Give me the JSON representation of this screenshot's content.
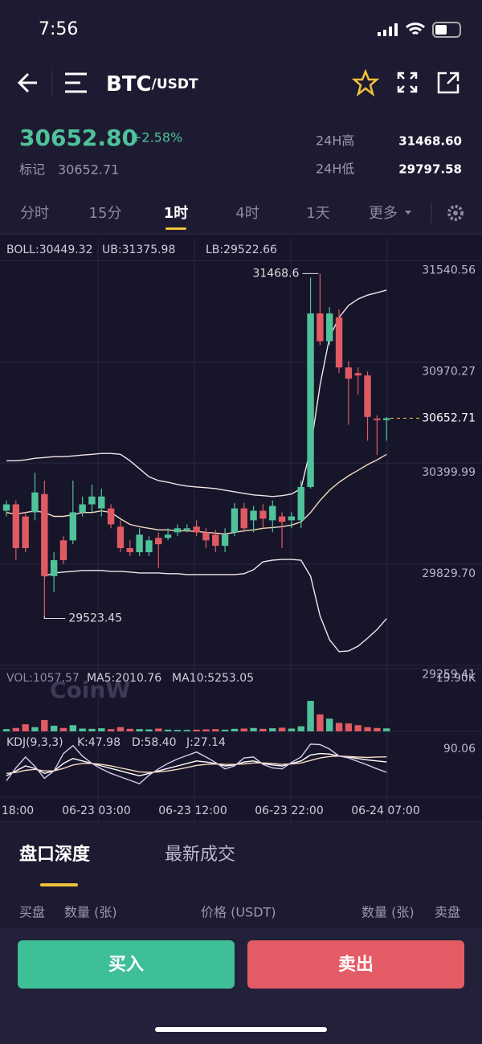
{
  "status_bar": {
    "time": "7:56"
  },
  "header": {
    "symbol": "BTC",
    "quote": "/USDT"
  },
  "ticker": {
    "price": "30652.80",
    "change": "+2.58%",
    "mark_label": "标记",
    "mark_price": "30652.71",
    "high_label": "24H高",
    "high": "31468.60",
    "low_label": "24H低",
    "low": "29797.58"
  },
  "tabs": [
    "分时",
    "15分",
    "1时",
    "4时",
    "1天",
    "更多"
  ],
  "active_tab": 2,
  "chart_data": {
    "type": "candlestick",
    "legend": [
      "BOLL:30449.32",
      "UB:31375.98",
      "LB:29522.66"
    ],
    "up_color": "#4fc29a",
    "down_color": "#e05a63",
    "open": [
      30131,
      30167,
      30099,
      30122,
      30225,
      29762,
      29964,
      29964,
      30122,
      30167,
      30144,
      30144,
      30041,
      29920,
      29897,
      29897,
      29978,
      29978,
      30009,
      30023,
      30041,
      30009,
      29996,
      29933,
      30009,
      30144,
      30077,
      30131,
      30077,
      30099,
      30077,
      30077,
      30265,
      31244,
      31087,
      31222,
      30939,
      30907,
      30894,
      30651,
      30642
    ],
    "high": [
      30189,
      30189,
      30122,
      30346,
      30301,
      29897,
      29987,
      30301,
      30211,
      30279,
      30256,
      30167,
      30077,
      29964,
      30032,
      29987,
      30009,
      30032,
      30054,
      30054,
      30077,
      30032,
      30023,
      30032,
      30175,
      30175,
      30158,
      30167,
      30189,
      30122,
      30122,
      30301,
      31446,
      31468.6,
      31280,
      31267,
      30975,
      30939,
      30916,
      30669,
      30660
    ],
    "low": [
      30099,
      29852,
      29897,
      30077,
      29523.45,
      29673,
      29830,
      29942,
      30099,
      30122,
      30099,
      30032,
      29897,
      29875,
      29875,
      29875,
      29807,
      29964,
      29987,
      30009,
      29987,
      29920,
      29897,
      29897,
      29987,
      30009,
      30009,
      30032,
      30009,
      29920,
      30032,
      30032,
      30256,
      31065,
      31065,
      30907,
      30616,
      30786,
      30526,
      30445,
      30526
    ],
    "close": [
      30167,
      29920,
      29920,
      30234,
      29762,
      29852,
      29852,
      30122,
      30167,
      30211,
      30211,
      30054,
      29920,
      29897,
      29996,
      29964,
      29942,
      29996,
      30032,
      30032,
      30009,
      29964,
      29933,
      29996,
      30144,
      30032,
      30131,
      30086,
      30158,
      30068,
      30099,
      30265,
      31244,
      31087,
      31244,
      30939,
      30876,
      30894,
      30660,
      30642,
      30652.71
    ],
    "bands": {
      "color_outer": "#f2e6ea",
      "color_middle": "#f3dcc0",
      "upper": [
        30413,
        30413,
        30418,
        30427,
        30431,
        30436,
        30436,
        30440,
        30445,
        30449,
        30454,
        30454,
        30449,
        30413,
        30368,
        30323,
        30301,
        30292,
        30279,
        30270,
        30265,
        30261,
        30256,
        30247,
        30238,
        30229,
        30220,
        30216,
        30211,
        30216,
        30225,
        30256,
        30481,
        30840,
        31109,
        31221,
        31289,
        31325,
        31347,
        31361,
        31375.98
      ],
      "middle": [
        30121,
        30112,
        30121,
        30130,
        30121,
        30099,
        30099,
        30108,
        30121,
        30121,
        30130,
        30121,
        30085,
        30054,
        30041,
        30032,
        30023,
        30023,
        30018,
        30018,
        30014,
        30009,
        30005,
        30000,
        30009,
        30018,
        30023,
        30032,
        30036,
        30041,
        30050,
        30068,
        30121,
        30189,
        30247,
        30292,
        30328,
        30359,
        30391,
        30418,
        30449.32
      ],
      "lower": [
        null,
        null,
        null,
        null,
        29762,
        29780,
        29785,
        29789,
        29794,
        29794,
        29794,
        29789,
        29789,
        29785,
        29780,
        29780,
        29780,
        29776,
        29776,
        29771,
        29771,
        29771,
        29771,
        29771,
        29771,
        29776,
        29798,
        29843,
        29852,
        29856,
        29856,
        29852,
        29762,
        29538,
        29403,
        29336,
        29340,
        29367,
        29412,
        29461,
        29522.66
      ]
    },
    "ylim": [
      29240,
      31670
    ],
    "yticks": [
      31540.56,
      30970.27,
      30399.99,
      {
        "value": 29829.7,
        "label": "29829.70"
      },
      29259.41
    ],
    "grid": true,
    "last_price": 30652.71,
    "high_note": 31468.6,
    "low_note": 29523.45,
    "x_labels": [
      "18:00",
      "06-23 03:00",
      "06-23 12:00",
      "06-23 22:00",
      "06-24 07:00"
    ]
  },
  "volume": {
    "legend": [
      "VOL:1057.57",
      "MA5:2010.76",
      "MA10:5253.05"
    ],
    "values": [
      800,
      1200,
      2500,
      1500,
      4000,
      2000,
      1200,
      2200,
      1000,
      900,
      1100,
      800,
      1500,
      900,
      800,
      700,
      1000,
      600,
      500,
      500,
      600,
      700,
      800,
      600,
      900,
      1000,
      1200,
      900,
      1100,
      1300,
      1000,
      1800,
      10800,
      6000,
      4500,
      3000,
      2800,
      2200,
      1500,
      1200,
      1057.57
    ],
    "ylim": [
      0,
      19900
    ],
    "yticks": [
      {
        "value": 19900,
        "label": "19.90K"
      }
    ]
  },
  "kdj": {
    "legend": [
      "KDJ(9,3,3)",
      "K:47.98",
      "D:58.40",
      "J:27.14"
    ],
    "k": [
      20,
      30,
      40,
      35,
      25,
      30,
      45,
      55,
      50,
      45,
      40,
      35,
      30,
      25,
      20,
      25,
      30,
      35,
      40,
      45,
      50,
      48,
      45,
      40,
      42,
      48,
      50,
      45,
      42,
      40,
      45,
      50,
      62,
      65,
      64,
      60,
      58,
      55,
      52,
      50,
      47.98
    ],
    "d": [
      25,
      27,
      31,
      33,
      30,
      30,
      35,
      42,
      45,
      45,
      43,
      40,
      36,
      32,
      28,
      27,
      28,
      30,
      33,
      37,
      41,
      43,
      44,
      43,
      43,
      44,
      46,
      46,
      45,
      43,
      44,
      46,
      51,
      56,
      59,
      60,
      59,
      58,
      57,
      58,
      58.4
    ],
    "j": [
      10,
      36,
      58,
      39,
      15,
      30,
      65,
      81,
      60,
      45,
      34,
      25,
      18,
      11,
      4,
      21,
      34,
      45,
      54,
      61,
      68,
      58,
      47,
      34,
      40,
      56,
      58,
      43,
      36,
      34,
      47,
      58,
      84,
      83,
      74,
      60,
      56,
      49,
      42,
      34,
      27.14
    ],
    "ylim": [
      -20,
      100
    ],
    "yticks": [
      90.06
    ]
  },
  "watermark": "CoinW",
  "order_tabs": [
    "盘口深度",
    "最新成交"
  ],
  "order_header": [
    "买盘",
    "数量 (张)",
    "价格 (USDT)",
    "数量 (张)",
    "卖盘"
  ],
  "buttons": {
    "buy": "买入",
    "sell": "卖出"
  }
}
